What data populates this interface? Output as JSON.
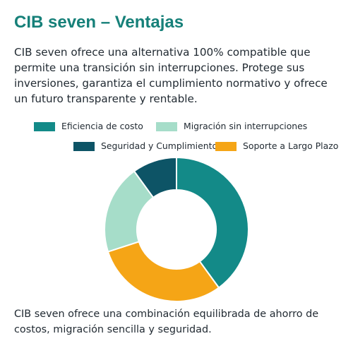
{
  "title": "CIB seven – Ventajas",
  "intro": "CIB seven ofrece una alternativa 100% compatible que permite una transición sin interrupciones. Protege sus inversiones, garantiza el cumplimiento normativo y ofrece un futuro transparente y rentable.",
  "outro": "CIB seven ofrece una combinación equilibrada de ahorro de costos, migración sencilla y seguridad.",
  "chart_data": {
    "type": "pie",
    "variant": "donut",
    "legend_position": "top",
    "categories": [
      "Eficiencia de costo",
      "Soporte a Largo Plazo",
      "Migración sin interrupciones",
      "Seguridad y Cumplimiento"
    ],
    "values": [
      40,
      30,
      20,
      10
    ],
    "colors": [
      "#138a88",
      "#f5a516",
      "#a6ddc9",
      "#0d5466"
    ]
  }
}
